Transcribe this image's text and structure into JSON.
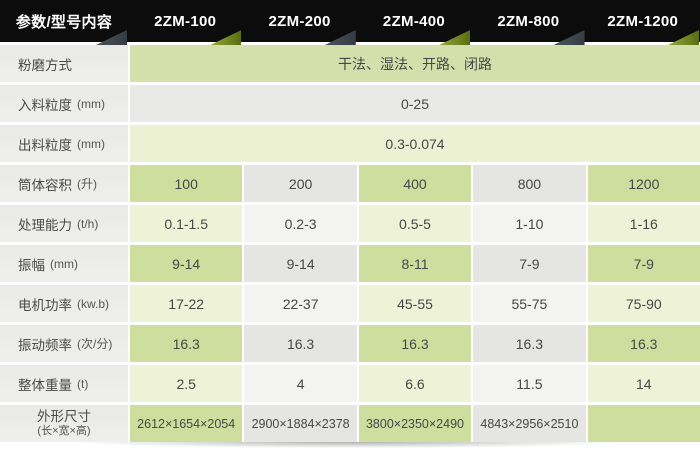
{
  "colors": {
    "header_bg": "#0c0c0c",
    "header_text": "#ffffff",
    "tri_dark_from": "#4d555d",
    "tri_dark_to": "#343b41",
    "tri_green_from": "#97a93f",
    "tri_green_to": "#5a6c10",
    "label_text": "#4a4a4a",
    "value_text": "#474747",
    "green_col_dark": "#cdde9f",
    "green_col_light": "#eef3d8",
    "gray_col_dark": "#e5e5e3",
    "gray_col_light": "#f3f3f1",
    "span_green": "#d4e0ab",
    "span_gray": "#e9e9e7",
    "span_green_light": "#ecf1d3"
  },
  "column_tones": [
    "green",
    "gray",
    "green",
    "gray",
    "green"
  ],
  "header": {
    "cells": [
      {
        "label": "参数/型号内容",
        "triangle": "dark"
      },
      {
        "label": "2ZM-100",
        "triangle": "green"
      },
      {
        "label": "2ZM-200",
        "triangle": "dark"
      },
      {
        "label": "2ZM-400",
        "triangle": "green"
      },
      {
        "label": "2ZM-800",
        "triangle": "dark"
      },
      {
        "label": "2ZM-1200",
        "triangle": "green"
      }
    ]
  },
  "rows": [
    {
      "label": "粉磨方式",
      "unit": "",
      "type": "span",
      "tone": "span_green",
      "value": "干法、湿法、开路、闭路"
    },
    {
      "label": "入料粒度",
      "unit": "(mm)",
      "type": "span",
      "tone": "span_gray",
      "value": "0-25"
    },
    {
      "label": "出料粒度",
      "unit": "(mm)",
      "type": "span",
      "tone": "span_green_light",
      "value": "0.3-0.074"
    },
    {
      "label": "筒体容积",
      "unit": "(升)",
      "type": "cells",
      "shade": "dark",
      "values": [
        "100",
        "200",
        "400",
        "800",
        "1200"
      ]
    },
    {
      "label": "处理能力",
      "unit": "(t/h)",
      "type": "cells",
      "shade": "light",
      "values": [
        "0.1-1.5",
        "0.2-3",
        "0.5-5",
        "1-10",
        "1-16"
      ]
    },
    {
      "label": "振幅",
      "unit": "(mm)",
      "type": "cells",
      "shade": "dark",
      "values": [
        "9-14",
        "9-14",
        "8-11",
        "7-9",
        "7-9"
      ]
    },
    {
      "label": "电机功率",
      "unit": "(kw.b)",
      "type": "cells",
      "shade": "light",
      "values": [
        "17-22",
        "22-37",
        "45-55",
        "55-75",
        "75-90"
      ]
    },
    {
      "label": "振动频率",
      "unit": "(次/分)",
      "type": "cells",
      "shade": "dark",
      "values": [
        "16.3",
        "16.3",
        "16.3",
        "16.3",
        "16.3"
      ]
    },
    {
      "label": "整体重量",
      "unit": "(t)",
      "type": "cells",
      "shade": "light",
      "values": [
        "2.5",
        "4",
        "6.6",
        "11.5",
        "14"
      ]
    },
    {
      "label": "外形尺寸",
      "unit": "(长×宽×高)",
      "type": "cells",
      "shade": "dark",
      "stacked": true,
      "small": true,
      "values": [
        "2612×1654×2054",
        "2900×1884×2378",
        "3800×2350×2490",
        "4843×2956×2510",
        ""
      ]
    }
  ]
}
